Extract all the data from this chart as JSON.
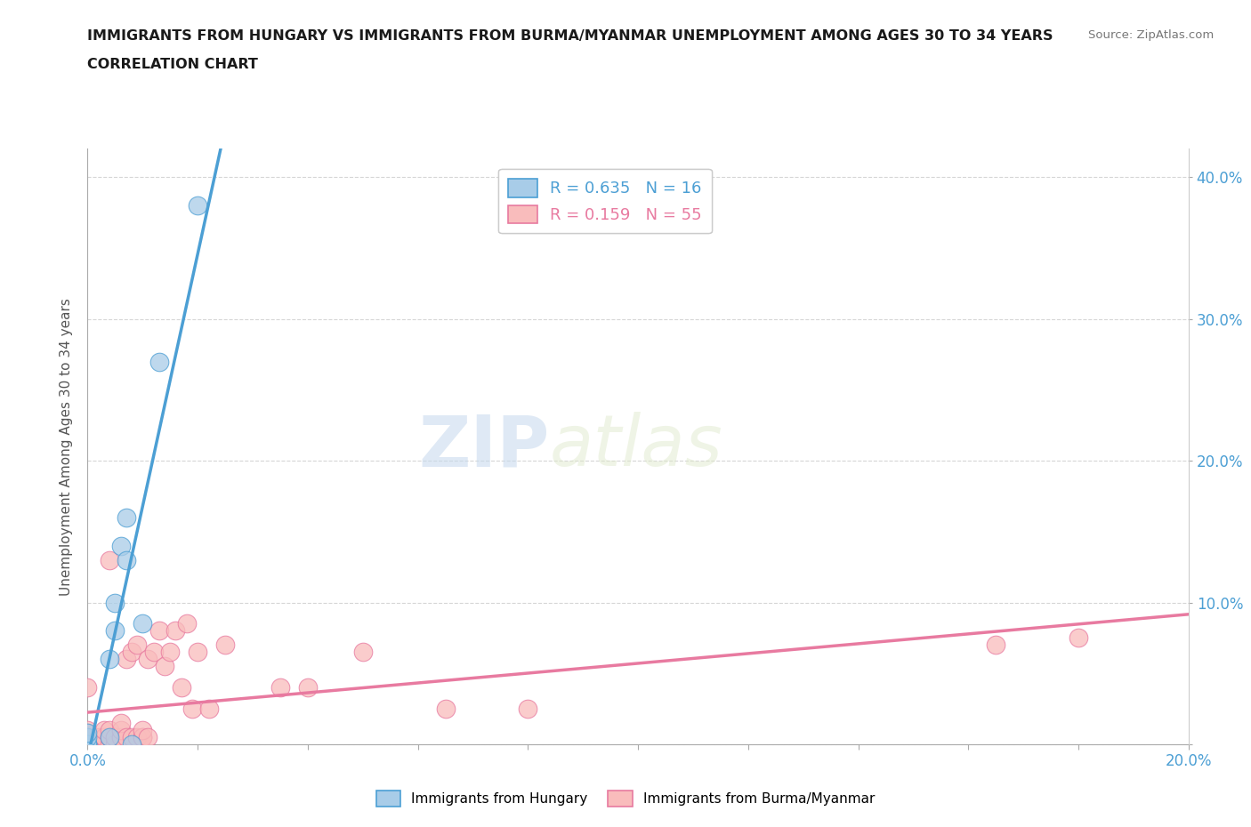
{
  "title_line1": "IMMIGRANTS FROM HUNGARY VS IMMIGRANTS FROM BURMA/MYANMAR UNEMPLOYMENT AMONG AGES 30 TO 34 YEARS",
  "title_line2": "CORRELATION CHART",
  "source": "Source: ZipAtlas.com",
  "ylabel": "Unemployment Among Ages 30 to 34 years",
  "xlim": [
    0.0,
    0.2
  ],
  "ylim": [
    0.0,
    0.42
  ],
  "hungary_R": 0.635,
  "hungary_N": 16,
  "burma_R": 0.159,
  "burma_N": 55,
  "hungary_color": "#a8cce8",
  "burma_color": "#f9bcbc",
  "hungary_line_color": "#4c9fd4",
  "burma_line_color": "#e87aa0",
  "watermark_zip": "ZIP",
  "watermark_atlas": "atlas",
  "hungary_x": [
    0.0,
    0.0,
    0.0,
    0.0,
    0.0,
    0.004,
    0.004,
    0.005,
    0.005,
    0.006,
    0.007,
    0.007,
    0.008,
    0.01,
    0.013,
    0.02
  ],
  "hungary_y": [
    0.0,
    0.0,
    0.0,
    0.005,
    0.008,
    0.005,
    0.06,
    0.08,
    0.1,
    0.14,
    0.13,
    0.16,
    0.0,
    0.085,
    0.27,
    0.38
  ],
  "burma_x": [
    0.0,
    0.0,
    0.0,
    0.0,
    0.0,
    0.0,
    0.0,
    0.0,
    0.0,
    0.0,
    0.0,
    0.002,
    0.002,
    0.003,
    0.003,
    0.003,
    0.004,
    0.004,
    0.004,
    0.004,
    0.004,
    0.005,
    0.005,
    0.006,
    0.006,
    0.006,
    0.007,
    0.007,
    0.008,
    0.008,
    0.009,
    0.009,
    0.01,
    0.01,
    0.01,
    0.011,
    0.011,
    0.012,
    0.013,
    0.014,
    0.015,
    0.016,
    0.017,
    0.018,
    0.019,
    0.02,
    0.022,
    0.025,
    0.035,
    0.04,
    0.05,
    0.065,
    0.08,
    0.165,
    0.18
  ],
  "burma_y": [
    0.0,
    0.0,
    0.0,
    0.0,
    0.0,
    0.005,
    0.005,
    0.005,
    0.008,
    0.01,
    0.04,
    0.0,
    0.005,
    0.005,
    0.005,
    0.01,
    0.0,
    0.005,
    0.005,
    0.01,
    0.13,
    0.0,
    0.005,
    0.005,
    0.01,
    0.015,
    0.005,
    0.06,
    0.005,
    0.065,
    0.005,
    0.07,
    0.005,
    0.005,
    0.01,
    0.005,
    0.06,
    0.065,
    0.08,
    0.055,
    0.065,
    0.08,
    0.04,
    0.085,
    0.025,
    0.065,
    0.025,
    0.07,
    0.04,
    0.04,
    0.065,
    0.025,
    0.025,
    0.07,
    0.075
  ]
}
